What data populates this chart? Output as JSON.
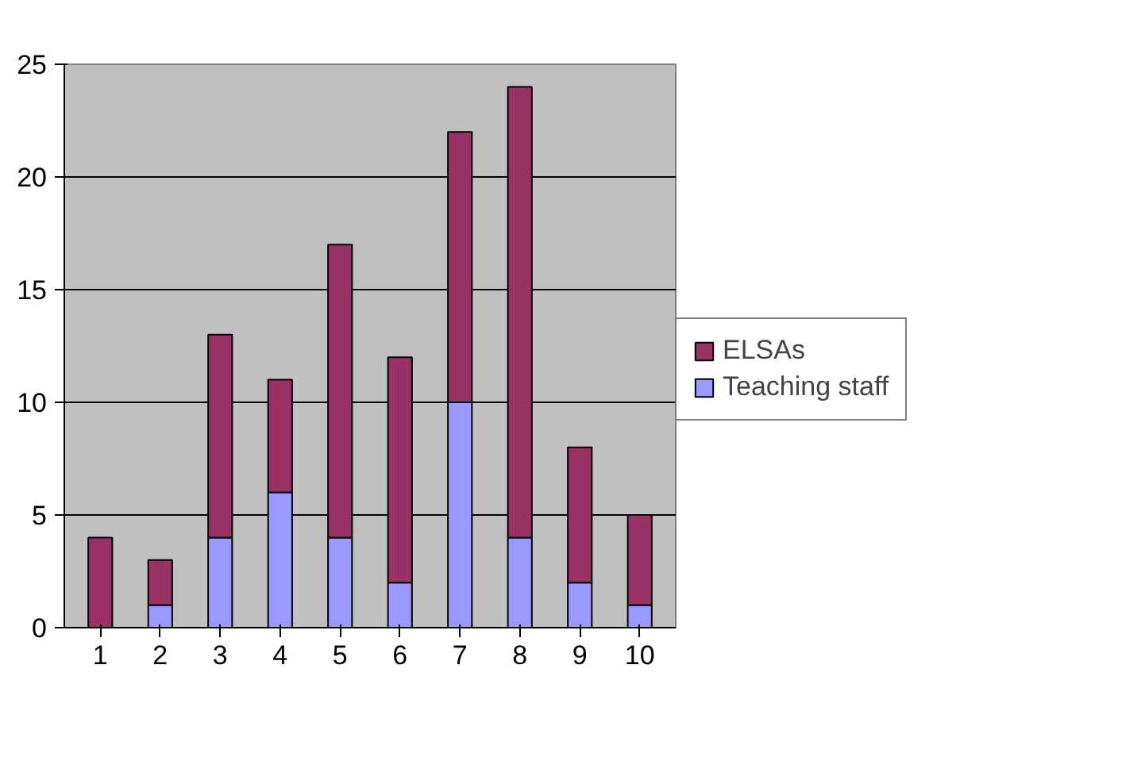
{
  "chart_data": {
    "type": "bar",
    "stacked": true,
    "categories": [
      "1",
      "2",
      "3",
      "4",
      "5",
      "6",
      "7",
      "8",
      "9",
      "10"
    ],
    "series": [
      {
        "name": "Teaching staff",
        "color": "#9999ff",
        "values": [
          0,
          1,
          4,
          6,
          4,
          2,
          10,
          4,
          2,
          1
        ]
      },
      {
        "name": "ELSAs",
        "color": "#993366",
        "values": [
          4,
          2,
          9,
          5,
          13,
          10,
          12,
          20,
          6,
          4
        ]
      }
    ],
    "ylim": [
      0,
      25
    ],
    "yticks": [
      0,
      5,
      10,
      15,
      20,
      25
    ],
    "grid": "y",
    "legend": "right"
  }
}
